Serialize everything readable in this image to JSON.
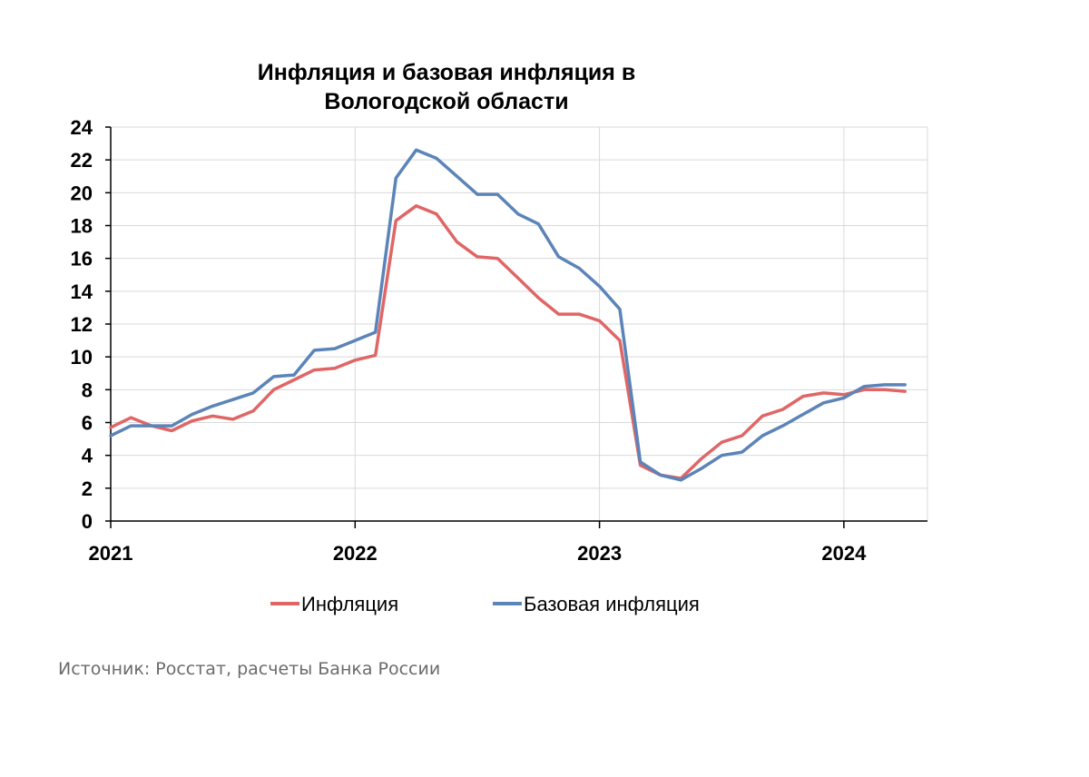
{
  "chart_data": {
    "type": "line",
    "title": [
      "Инфляция и базовая инфляция в",
      "Вологодской области"
    ],
    "xlabel": "",
    "ylabel": "",
    "x_range": [
      2021,
      2024.333
    ],
    "ylim": [
      0,
      24
    ],
    "y_ticks": [
      "0",
      "2",
      "4",
      "6",
      "8",
      "10",
      "12",
      "14",
      "16",
      "18",
      "20",
      "22",
      "24"
    ],
    "x_ticks": [
      "2021",
      "2022",
      "2023",
      "2024"
    ],
    "grid": true,
    "legend_position": "bottom",
    "series": [
      {
        "name": "Инфляция",
        "color": "#e06666",
        "x": [
          2021.0,
          2021.083,
          2021.167,
          2021.25,
          2021.333,
          2021.417,
          2021.5,
          2021.583,
          2021.667,
          2021.75,
          2021.833,
          2021.917,
          2022.0,
          2022.083,
          2022.167,
          2022.25,
          2022.333,
          2022.417,
          2022.5,
          2022.583,
          2022.667,
          2022.75,
          2022.833,
          2022.917,
          2023.0,
          2023.083,
          2023.167,
          2023.25,
          2023.333,
          2023.417,
          2023.5,
          2023.583,
          2023.667,
          2023.75,
          2023.833,
          2023.917,
          2024.0,
          2024.083,
          2024.167,
          2024.25
        ],
        "values": [
          5.7,
          6.3,
          5.8,
          5.5,
          6.1,
          6.4,
          6.2,
          6.7,
          8.0,
          8.6,
          9.2,
          9.3,
          9.8,
          10.1,
          18.3,
          19.2,
          18.7,
          17.0,
          16.1,
          16.0,
          14.8,
          13.6,
          12.6,
          12.6,
          12.2,
          11.0,
          3.4,
          2.8,
          2.6,
          3.8,
          4.8,
          5.2,
          6.4,
          6.8,
          7.6,
          7.8,
          7.7,
          8.0,
          8.0,
          7.9
        ]
      },
      {
        "name": "Базовая инфляция",
        "color": "#5b84b8",
        "x": [
          2021.0,
          2021.083,
          2021.167,
          2021.25,
          2021.333,
          2021.417,
          2021.5,
          2021.583,
          2021.667,
          2021.75,
          2021.833,
          2021.917,
          2022.0,
          2022.083,
          2022.167,
          2022.25,
          2022.333,
          2022.417,
          2022.5,
          2022.583,
          2022.667,
          2022.75,
          2022.833,
          2022.917,
          2023.0,
          2023.083,
          2023.167,
          2023.25,
          2023.333,
          2023.417,
          2023.5,
          2023.583,
          2023.667,
          2023.75,
          2023.833,
          2023.917,
          2024.0,
          2024.083,
          2024.167,
          2024.25
        ],
        "values": [
          5.2,
          5.8,
          5.8,
          5.8,
          6.5,
          7.0,
          7.4,
          7.8,
          8.8,
          8.9,
          10.4,
          10.5,
          11.0,
          11.5,
          20.9,
          22.6,
          22.1,
          21.0,
          19.9,
          19.9,
          18.7,
          18.1,
          16.1,
          15.4,
          14.3,
          12.9,
          3.6,
          2.8,
          2.5,
          3.2,
          4.0,
          4.2,
          5.2,
          5.8,
          6.5,
          7.2,
          7.5,
          8.2,
          8.3,
          8.3
        ]
      }
    ]
  },
  "source": "Источник: Росстат, расчеты Банка России"
}
